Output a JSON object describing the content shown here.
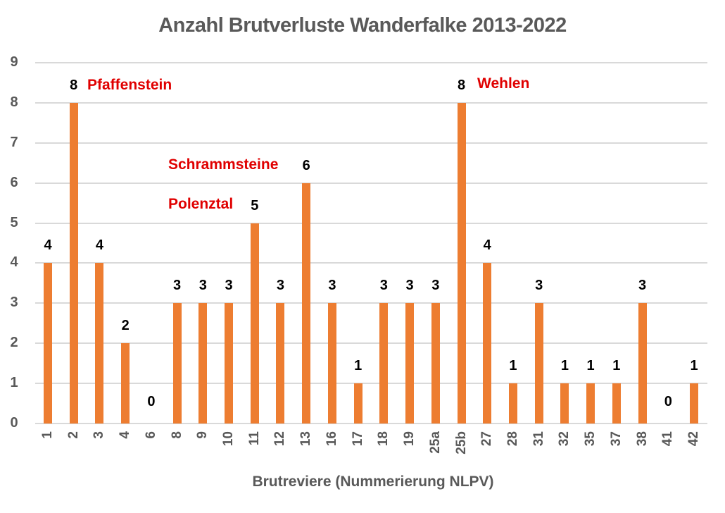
{
  "chart_data": {
    "type": "bar",
    "title": "Anzahl Brutverluste Wanderfalke 2013-2022",
    "xlabel": "Brutreviere (Nummerierung NLPV)",
    "ylabel": "",
    "ylim": [
      0,
      9
    ],
    "yticks": [
      "0",
      "1",
      "2",
      "3",
      "4",
      "5",
      "6",
      "7",
      "8",
      "9"
    ],
    "grid": true,
    "legend": null,
    "bar_color": "#ed7d31",
    "categories": [
      "1",
      "2",
      "3",
      "4",
      "6",
      "8",
      "9",
      "10",
      "11",
      "12",
      "13",
      "16",
      "17",
      "18",
      "19",
      "25a",
      "25b",
      "27",
      "28",
      "31",
      "32",
      "35",
      "37",
      "38",
      "41",
      "42"
    ],
    "values": [
      4,
      8,
      4,
      2,
      0,
      3,
      3,
      3,
      5,
      3,
      6,
      3,
      1,
      3,
      3,
      3,
      8,
      4,
      1,
      3,
      1,
      1,
      1,
      3,
      0,
      1
    ],
    "data_labels": [
      "4",
      "8",
      "4",
      "2",
      "0",
      "3",
      "3",
      "3",
      "5",
      "3",
      "6",
      "3",
      "1",
      "3",
      "3",
      "3",
      "8",
      "4",
      "1",
      "3",
      "1",
      "1",
      "1",
      "3",
      "0",
      "1"
    ],
    "annotations": [
      {
        "text": "Pfaffenstein",
        "category": "2",
        "color": "#e00000"
      },
      {
        "text": "Schrammsteine",
        "category": "13",
        "color": "#e00000"
      },
      {
        "text": "Polenztal",
        "category": "11",
        "color": "#e00000"
      },
      {
        "text": "Wehlen",
        "category": "25b",
        "color": "#e00000"
      }
    ]
  }
}
